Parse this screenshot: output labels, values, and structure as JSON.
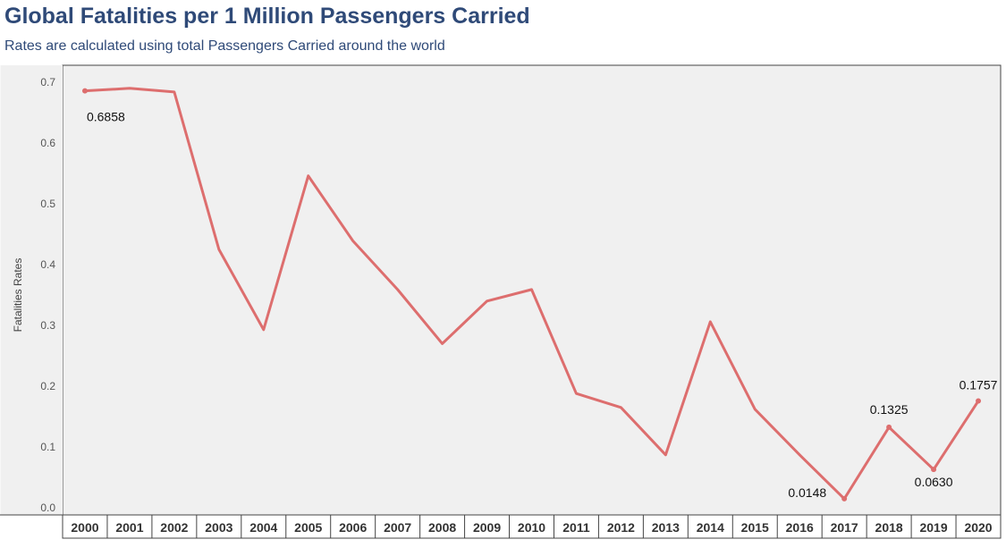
{
  "header": {
    "title": "Global Fatalities per 1 Million Passengers Carried",
    "subtitle": "Rates are calculated using total Passengers Carried around the world"
  },
  "colors": {
    "line": "#dd6e6e",
    "title": "#2f4a78",
    "plot_background": "#f0f0f0"
  },
  "chart_data": {
    "type": "line",
    "ylabel": "Fatalities Rates",
    "ylim": [
      0,
      0.7
    ],
    "yticks": [
      "0.0",
      "0.1",
      "0.2",
      "0.3",
      "0.4",
      "0.5",
      "0.6",
      "0.7"
    ],
    "categories": [
      "2000",
      "2001",
      "2002",
      "2003",
      "2004",
      "2005",
      "2006",
      "2007",
      "2008",
      "2009",
      "2010",
      "2011",
      "2012",
      "2013",
      "2014",
      "2015",
      "2016",
      "2017",
      "2018",
      "2019",
      "2020"
    ],
    "series": [
      {
        "values": [
          0.6858,
          0.69,
          0.684,
          0.425,
          0.293,
          0.546,
          0.439,
          0.359,
          0.27,
          0.34,
          0.359,
          0.188,
          0.165,
          0.087,
          0.306,
          0.162,
          0.087,
          0.0148,
          0.1325,
          0.063,
          0.1757
        ]
      }
    ],
    "data_labels": [
      {
        "index": 0,
        "text": "0.6858"
      },
      {
        "index": 17,
        "text": "0.0148"
      },
      {
        "index": 18,
        "text": "0.1325"
      },
      {
        "index": 19,
        "text": "0.0630"
      },
      {
        "index": 20,
        "text": "0.1757"
      }
    ],
    "grid": false
  }
}
